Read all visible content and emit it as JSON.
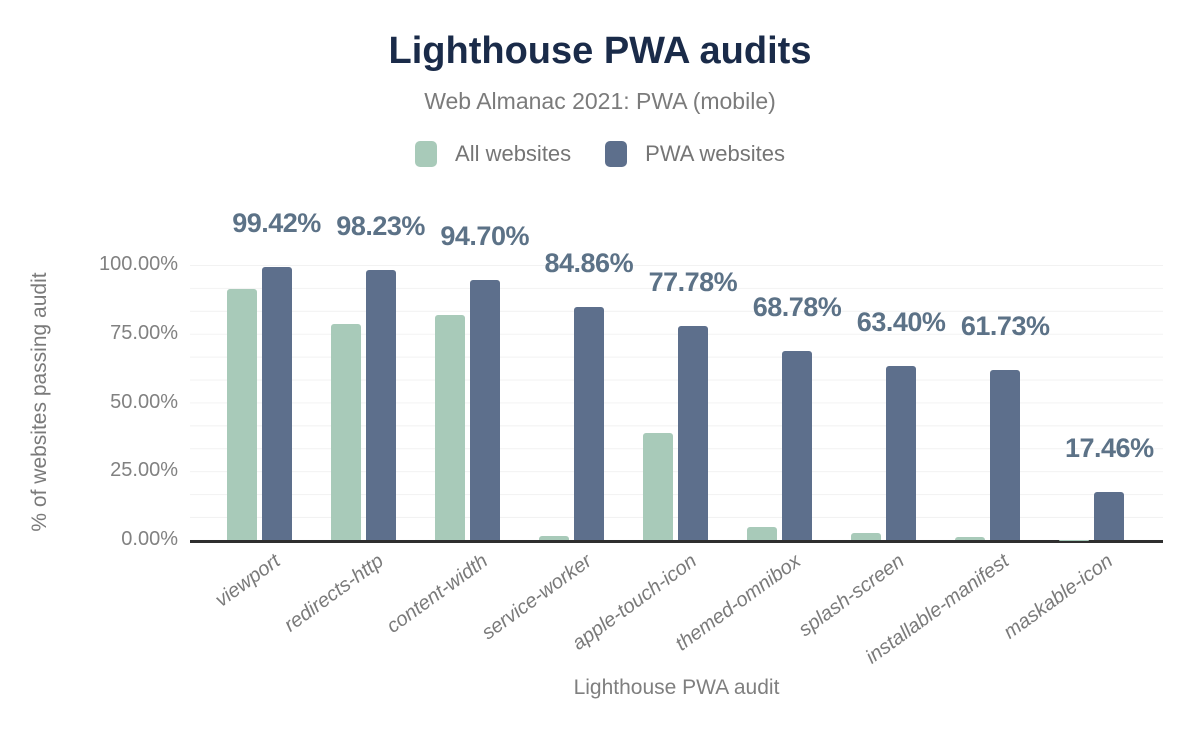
{
  "chart_data": {
    "type": "bar",
    "title": "Lighthouse PWA audits",
    "subtitle": "Web Almanac 2021: PWA (mobile)",
    "xlabel": "Lighthouse PWA audit",
    "ylabel": "% of websites passing audit",
    "categories": [
      "viewport",
      "redirects-http",
      "content-width",
      "service-worker",
      "apple-touch-icon",
      "themed-omnibox",
      "splash-screen",
      "installable-manifest",
      "maskable-icon"
    ],
    "series": [
      {
        "name": "All websites",
        "color": "#a8cab9",
        "values": [
          91.4,
          78.4,
          82.0,
          1.6,
          39.0,
          4.6,
          2.4,
          1.0,
          0.1
        ],
        "values_note": "estimated from bar heights; not labeled on chart",
        "show_labels": false
      },
      {
        "name": "PWA websites",
        "color": "#5d6f8c",
        "values": [
          99.42,
          98.23,
          94.7,
          84.86,
          77.78,
          68.78,
          63.4,
          61.73,
          17.46
        ],
        "labels": [
          "99.42%",
          "98.23%",
          "94.70%",
          "84.86%",
          "77.78%",
          "68.78%",
          "63.40%",
          "61.73%",
          "17.46%"
        ],
        "show_labels": true
      }
    ],
    "y_ticks": [
      {
        "value": 0,
        "label": "0.00%"
      },
      {
        "value": 25,
        "label": "25.00%"
      },
      {
        "value": 50,
        "label": "50.00%"
      },
      {
        "value": 75,
        "label": "75.00%"
      },
      {
        "value": 100,
        "label": "100.00%"
      }
    ],
    "ylim": [
      0,
      100
    ],
    "grid": {
      "horizontal": true,
      "minor_interval_pct": 8.333,
      "color": "#f2f2f2"
    },
    "legend_position": "top",
    "colors": {
      "title": "#1a2b49",
      "subtitle": "#7b7b7b",
      "data_label": "#5c7287",
      "axis_text": "#818181",
      "baseline": "#2f2f2f",
      "background": "#ffffff"
    }
  }
}
